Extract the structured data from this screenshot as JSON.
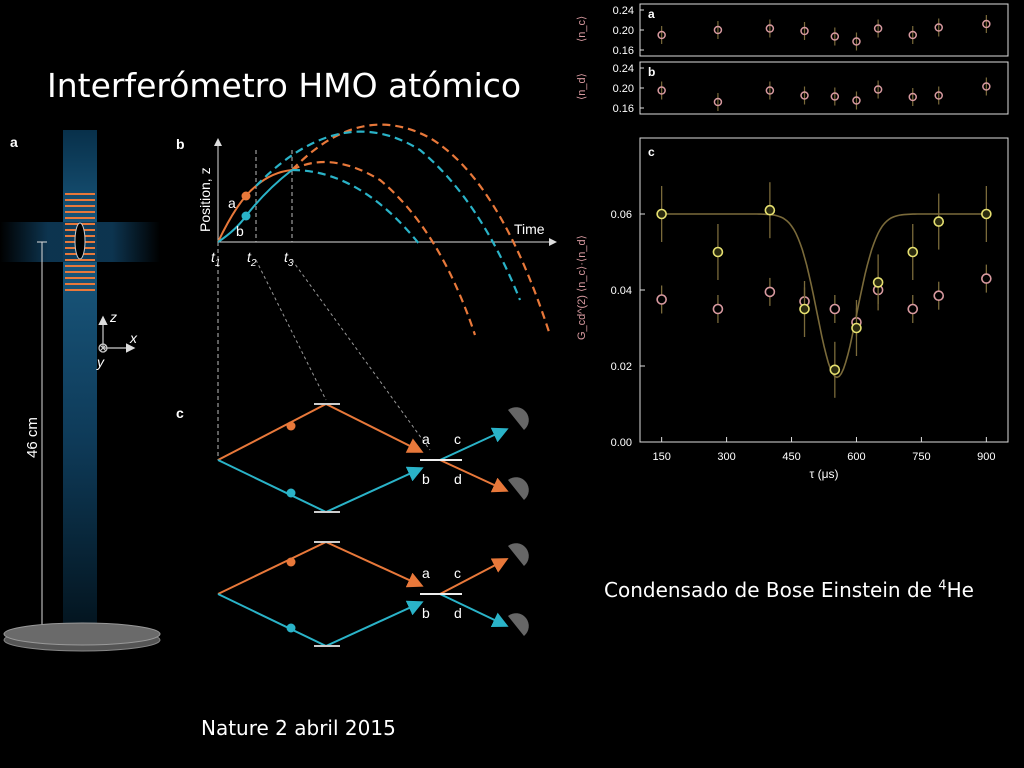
{
  "slide": {
    "title": "Interferómetro HMO atómico",
    "caption_text": "Condensado de Bose Einstein de ",
    "caption_sup": "4",
    "caption_tail": "He",
    "source": "Nature 2 abril 2015"
  },
  "panel_left": {
    "label": "a",
    "distance_label": "46 cm",
    "axis_z": "z",
    "axis_x": "x",
    "axis_y": "y"
  },
  "panel_b": {
    "label": "b",
    "ylabel": "Position, z",
    "xlabel": "Time",
    "point_a": "a",
    "point_b": "b",
    "t1": "t",
    "t1_sub": "1",
    "t2": "t",
    "t2_sub": "2",
    "t3": "t",
    "t3_sub": "3"
  },
  "panel_c": {
    "label": "c",
    "port_a": "a",
    "port_b": "b",
    "port_c": "c",
    "port_d": "d"
  },
  "colors": {
    "orange": "#e8783a",
    "cyan": "#2ab3c8",
    "pink": "#d89aa0",
    "yellow": "#e6e070",
    "fit": "#7a6a3a"
  },
  "chart_data": [
    {
      "type": "scatter",
      "label": "a",
      "ylabel": "⟨n_c⟩",
      "ylim": [
        0.16,
        0.24
      ],
      "yticks": [
        "0.24",
        "0.20",
        "0.16"
      ],
      "x": [
        150,
        280,
        400,
        480,
        550,
        600,
        650,
        730,
        790,
        900
      ],
      "y": [
        0.19,
        0.2,
        0.203,
        0.198,
        0.187,
        0.177,
        0.203,
        0.19,
        0.205,
        0.212
      ]
    },
    {
      "type": "scatter",
      "label": "b",
      "ylabel": "⟨n_d⟩",
      "ylim": [
        0.16,
        0.24
      ],
      "yticks": [
        "0.24",
        "0.20",
        "0.16"
      ],
      "x": [
        150,
        280,
        400,
        480,
        550,
        600,
        650,
        730,
        790,
        900
      ],
      "y": [
        0.195,
        0.172,
        0.195,
        0.185,
        0.183,
        0.175,
        0.197,
        0.182,
        0.185,
        0.203
      ]
    },
    {
      "type": "scatter",
      "label": "c",
      "ylabel": "G_cd^(2)  ⟨n_c⟩·⟨n_d⟩",
      "xlabel": "τ (μs)",
      "xlim": [
        100,
        950
      ],
      "ylim": [
        0,
        0.08
      ],
      "xticks": [
        "150",
        "300",
        "450",
        "600",
        "750",
        "900"
      ],
      "yticks": [
        "0.00",
        "0.02",
        "0.04",
        "0.06"
      ],
      "series": [
        {
          "name": "G_cd^(2)",
          "x": [
            150,
            280,
            400,
            480,
            550,
            600,
            650,
            730,
            790,
            900
          ],
          "y": [
            0.06,
            0.05,
            0.061,
            0.035,
            0.019,
            0.03,
            0.042,
            0.05,
            0.058,
            0.06
          ]
        },
        {
          "name": "⟨n_c⟩·⟨n_d⟩",
          "x": [
            150,
            280,
            400,
            480,
            550,
            600,
            650,
            730,
            790,
            900
          ],
          "y": [
            0.0375,
            0.035,
            0.0395,
            0.037,
            0.035,
            0.0315,
            0.04,
            0.035,
            0.0385,
            0.043
          ]
        }
      ],
      "fit": {
        "baseline": 0.06,
        "depth": 0.043,
        "center": 555,
        "width": 65
      }
    }
  ]
}
